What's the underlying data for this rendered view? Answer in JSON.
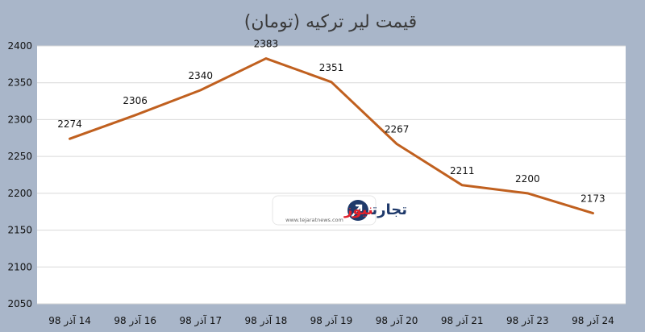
{
  "chart_data": {
    "type": "line",
    "title": "قیمت لیر ترکیه (تومان)",
    "categories": [
      "14 آذر 98",
      "16 آذر 98",
      "17 آذر 98",
      "18 آذر 98",
      "19 آذر 98",
      "20 آذر 98",
      "21 آذر 98",
      "23 آذر 98",
      "24 آذر 98"
    ],
    "series": [
      {
        "values": [
          2274,
          2306,
          2340,
          2383,
          2351,
          2267,
          2211,
          2200,
          2173
        ],
        "color": "#c0601f"
      }
    ],
    "ylim": [
      2050,
      2400
    ],
    "yticks": [
      2050,
      2100,
      2150,
      2200,
      2250,
      2300,
      2350,
      2400
    ],
    "grid": true,
    "data_labels": true
  },
  "watermark": {
    "brand_fa_1": "تجارت",
    "brand_fa_2": "نیوز",
    "url": "www.tejaratnews.com",
    "accent_color": "#e0212b",
    "dark_color": "#1f3a6b"
  },
  "colors": {
    "background": "#a9b6c9",
    "plot_background": "#ffffff",
    "grid": "#d9d9d9"
  }
}
